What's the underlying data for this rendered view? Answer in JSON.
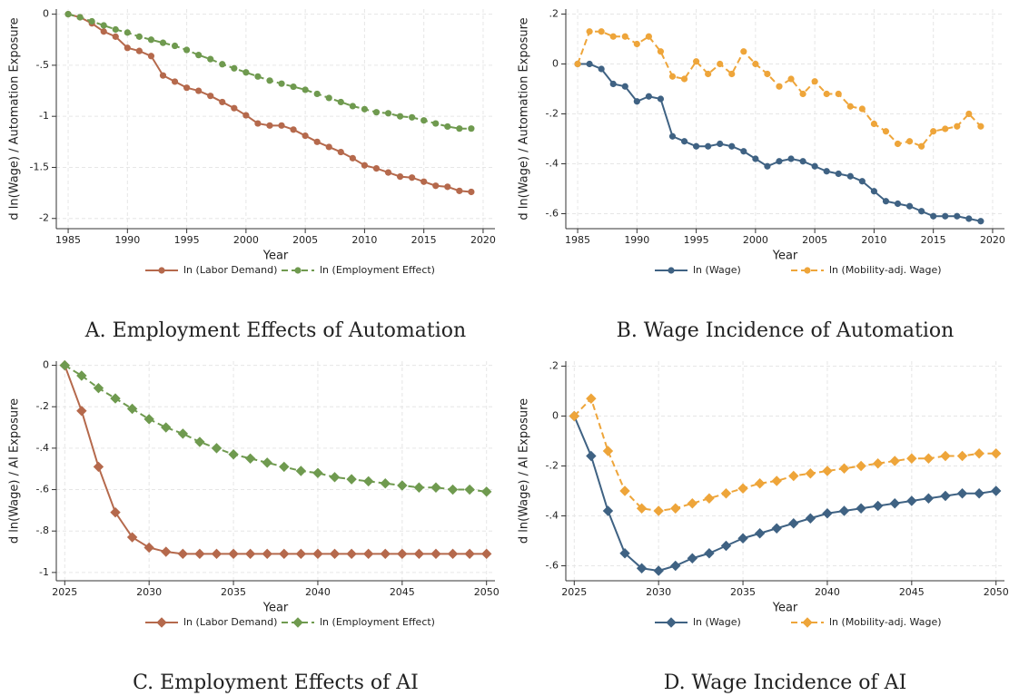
{
  "chart_data": [
    {
      "type": "line",
      "caption": "A. Employment Effects of Automation",
      "xlabel": "Year",
      "ylabel": "d ln(Wage) / Automation Exposure",
      "x": [
        1985,
        1986,
        1987,
        1988,
        1989,
        1990,
        1991,
        1992,
        1993,
        1994,
        1995,
        1996,
        1997,
        1998,
        1999,
        2000,
        2001,
        2002,
        2003,
        2004,
        2005,
        2006,
        2007,
        2008,
        2009,
        2010,
        2011,
        2012,
        2013,
        2014,
        2015,
        2016,
        2017,
        2018,
        2019
      ],
      "xlim": [
        1984,
        2021
      ],
      "xticks": [
        1985,
        1990,
        1995,
        2000,
        2005,
        2010,
        2015,
        2020
      ],
      "ylim": [
        -2.1,
        0.05
      ],
      "yticks": [
        0,
        {
          "value": -0.5,
          "label": "-.5"
        },
        -1,
        -1.5,
        -2
      ],
      "grid": true,
      "marker": "circle",
      "series": [
        {
          "name": "ln (Labor Demand)",
          "color": "#b5694c",
          "dashed": false,
          "values": [
            0,
            -0.03,
            -0.09,
            -0.17,
            -0.22,
            -0.33,
            -0.36,
            -0.41,
            -0.6,
            -0.66,
            -0.72,
            -0.75,
            -0.8,
            -0.86,
            -0.92,
            -0.99,
            -1.07,
            -1.09,
            -1.09,
            -1.13,
            -1.19,
            -1.25,
            -1.3,
            -1.35,
            -1.41,
            -1.48,
            -1.51,
            -1.55,
            -1.59,
            -1.6,
            -1.64,
            -1.68,
            -1.69,
            -1.73,
            -1.74
          ]
        },
        {
          "name": "ln (Employment Effect)",
          "color": "#6f9a4f",
          "dashed": true,
          "values": [
            0,
            -0.03,
            -0.07,
            -0.11,
            -0.15,
            -0.18,
            -0.22,
            -0.25,
            -0.28,
            -0.31,
            -0.35,
            -0.4,
            -0.44,
            -0.49,
            -0.53,
            -0.57,
            -0.61,
            -0.65,
            -0.68,
            -0.71,
            -0.74,
            -0.78,
            -0.82,
            -0.86,
            -0.9,
            -0.93,
            -0.96,
            -0.97,
            -1.0,
            -1.01,
            -1.04,
            -1.07,
            -1.1,
            -1.12,
            -1.12
          ]
        }
      ]
    },
    {
      "type": "line",
      "caption": "B. Wage Incidence of Automation",
      "xlabel": "Year",
      "ylabel": "d ln(Wage) / Automation Exposure",
      "x": [
        1985,
        1986,
        1987,
        1988,
        1989,
        1990,
        1991,
        1992,
        1993,
        1994,
        1995,
        1996,
        1997,
        1998,
        1999,
        2000,
        2001,
        2002,
        2003,
        2004,
        2005,
        2006,
        2007,
        2008,
        2009,
        2010,
        2011,
        2012,
        2013,
        2014,
        2015,
        2016,
        2017,
        2018,
        2019
      ],
      "xlim": [
        1984,
        2021
      ],
      "xticks": [
        1985,
        1990,
        1995,
        2000,
        2005,
        2010,
        2015,
        2020
      ],
      "ylim": [
        -0.66,
        0.22
      ],
      "yticks": [
        {
          "value": 0.2,
          "label": ".2"
        },
        0,
        {
          "value": -0.2,
          "label": "-.2"
        },
        {
          "value": -0.4,
          "label": "-.4"
        },
        {
          "value": -0.6,
          "label": "-.6"
        }
      ],
      "grid": true,
      "marker": "circle",
      "series": [
        {
          "name": "ln (Wage)",
          "color": "#3f6283",
          "dashed": false,
          "values": [
            0,
            0,
            -0.02,
            -0.08,
            -0.09,
            -0.15,
            -0.13,
            -0.14,
            -0.29,
            -0.31,
            -0.33,
            -0.33,
            -0.32,
            -0.33,
            -0.35,
            -0.38,
            -0.41,
            -0.39,
            -0.38,
            -0.39,
            -0.41,
            -0.43,
            -0.44,
            -0.45,
            -0.47,
            -0.51,
            -0.55,
            -0.56,
            -0.57,
            -0.59,
            -0.61,
            -0.61,
            -0.61,
            -0.62,
            -0.63
          ]
        },
        {
          "name": "ln (Mobility-adj. Wage)",
          "color": "#eea53a",
          "dashed": true,
          "values": [
            0,
            0.13,
            0.13,
            0.11,
            0.11,
            0.08,
            0.11,
            0.05,
            -0.05,
            -0.06,
            0.01,
            -0.04,
            0,
            -0.04,
            0.05,
            0,
            -0.04,
            -0.09,
            -0.06,
            -0.12,
            -0.07,
            -0.12,
            -0.12,
            -0.17,
            -0.18,
            -0.24,
            -0.27,
            -0.32,
            -0.31,
            -0.33,
            -0.27,
            -0.26,
            -0.25,
            -0.2,
            -0.25
          ]
        }
      ]
    },
    {
      "type": "line",
      "caption": "C. Employment Effects of AI",
      "xlabel": "Year",
      "ylabel": "d ln(Wage) / AI Exposure",
      "x": [
        2025,
        2026,
        2027,
        2028,
        2029,
        2030,
        2031,
        2032,
        2033,
        2034,
        2035,
        2036,
        2037,
        2038,
        2039,
        2040,
        2041,
        2042,
        2043,
        2044,
        2045,
        2046,
        2047,
        2048,
        2049,
        2050
      ],
      "xlim": [
        2024.5,
        2050.5
      ],
      "xticks": [
        2025,
        2030,
        2035,
        2040,
        2045,
        2050
      ],
      "ylim": [
        -1.04,
        0.02
      ],
      "yticks": [
        0,
        {
          "value": -0.2,
          "label": "-.2"
        },
        {
          "value": -0.4,
          "label": "-.4"
        },
        {
          "value": -0.6,
          "label": "-.6"
        },
        {
          "value": -0.8,
          "label": "-.8"
        },
        -1
      ],
      "grid": true,
      "marker": "diamond",
      "series": [
        {
          "name": "ln (Labor Demand)",
          "color": "#b5694c",
          "dashed": false,
          "values": [
            0,
            -0.22,
            -0.49,
            -0.71,
            -0.83,
            -0.88,
            -0.9,
            -0.91,
            -0.91,
            -0.91,
            -0.91,
            -0.91,
            -0.91,
            -0.91,
            -0.91,
            -0.91,
            -0.91,
            -0.91,
            -0.91,
            -0.91,
            -0.91,
            -0.91,
            -0.91,
            -0.91,
            -0.91,
            -0.91
          ]
        },
        {
          "name": "ln (Employment Effect)",
          "color": "#6f9a4f",
          "dashed": true,
          "values": [
            0,
            -0.05,
            -0.11,
            -0.16,
            -0.21,
            -0.26,
            -0.3,
            -0.33,
            -0.37,
            -0.4,
            -0.43,
            -0.45,
            -0.47,
            -0.49,
            -0.51,
            -0.52,
            -0.54,
            -0.55,
            -0.56,
            -0.57,
            -0.58,
            -0.59,
            -0.59,
            -0.6,
            -0.6,
            -0.61
          ]
        }
      ]
    },
    {
      "type": "line",
      "caption": "D. Wage Incidence of AI",
      "xlabel": "Year",
      "ylabel": "d ln(Wage) / AI Exposure",
      "x": [
        2025,
        2026,
        2027,
        2028,
        2029,
        2030,
        2031,
        2032,
        2033,
        2034,
        2035,
        2036,
        2037,
        2038,
        2039,
        2040,
        2041,
        2042,
        2043,
        2044,
        2045,
        2046,
        2047,
        2048,
        2049,
        2050
      ],
      "xlim": [
        2024.5,
        2050.5
      ],
      "xticks": [
        2025,
        2030,
        2035,
        2040,
        2045,
        2050
      ],
      "ylim": [
        -0.66,
        0.22
      ],
      "yticks": [
        {
          "value": 0.2,
          "label": ".2"
        },
        0,
        {
          "value": -0.2,
          "label": "-.2"
        },
        {
          "value": -0.4,
          "label": "-.4"
        },
        {
          "value": -0.6,
          "label": "-.6"
        }
      ],
      "grid": true,
      "marker": "diamond",
      "series": [
        {
          "name": "ln (Wage)",
          "color": "#3f6283",
          "dashed": false,
          "values": [
            0,
            -0.16,
            -0.38,
            -0.55,
            -0.61,
            -0.62,
            -0.6,
            -0.57,
            -0.55,
            -0.52,
            -0.49,
            -0.47,
            -0.45,
            -0.43,
            -0.41,
            -0.39,
            -0.38,
            -0.37,
            -0.36,
            -0.35,
            -0.34,
            -0.33,
            -0.32,
            -0.31,
            -0.31,
            -0.3
          ]
        },
        {
          "name": "ln (Mobility-adj. Wage)",
          "color": "#eea53a",
          "dashed": true,
          "values": [
            0,
            0.07,
            -0.14,
            -0.3,
            -0.37,
            -0.38,
            -0.37,
            -0.35,
            -0.33,
            -0.31,
            -0.29,
            -0.27,
            -0.26,
            -0.24,
            -0.23,
            -0.22,
            -0.21,
            -0.2,
            -0.19,
            -0.18,
            -0.17,
            -0.17,
            -0.16,
            -0.16,
            -0.15,
            -0.15
          ]
        }
      ]
    }
  ]
}
